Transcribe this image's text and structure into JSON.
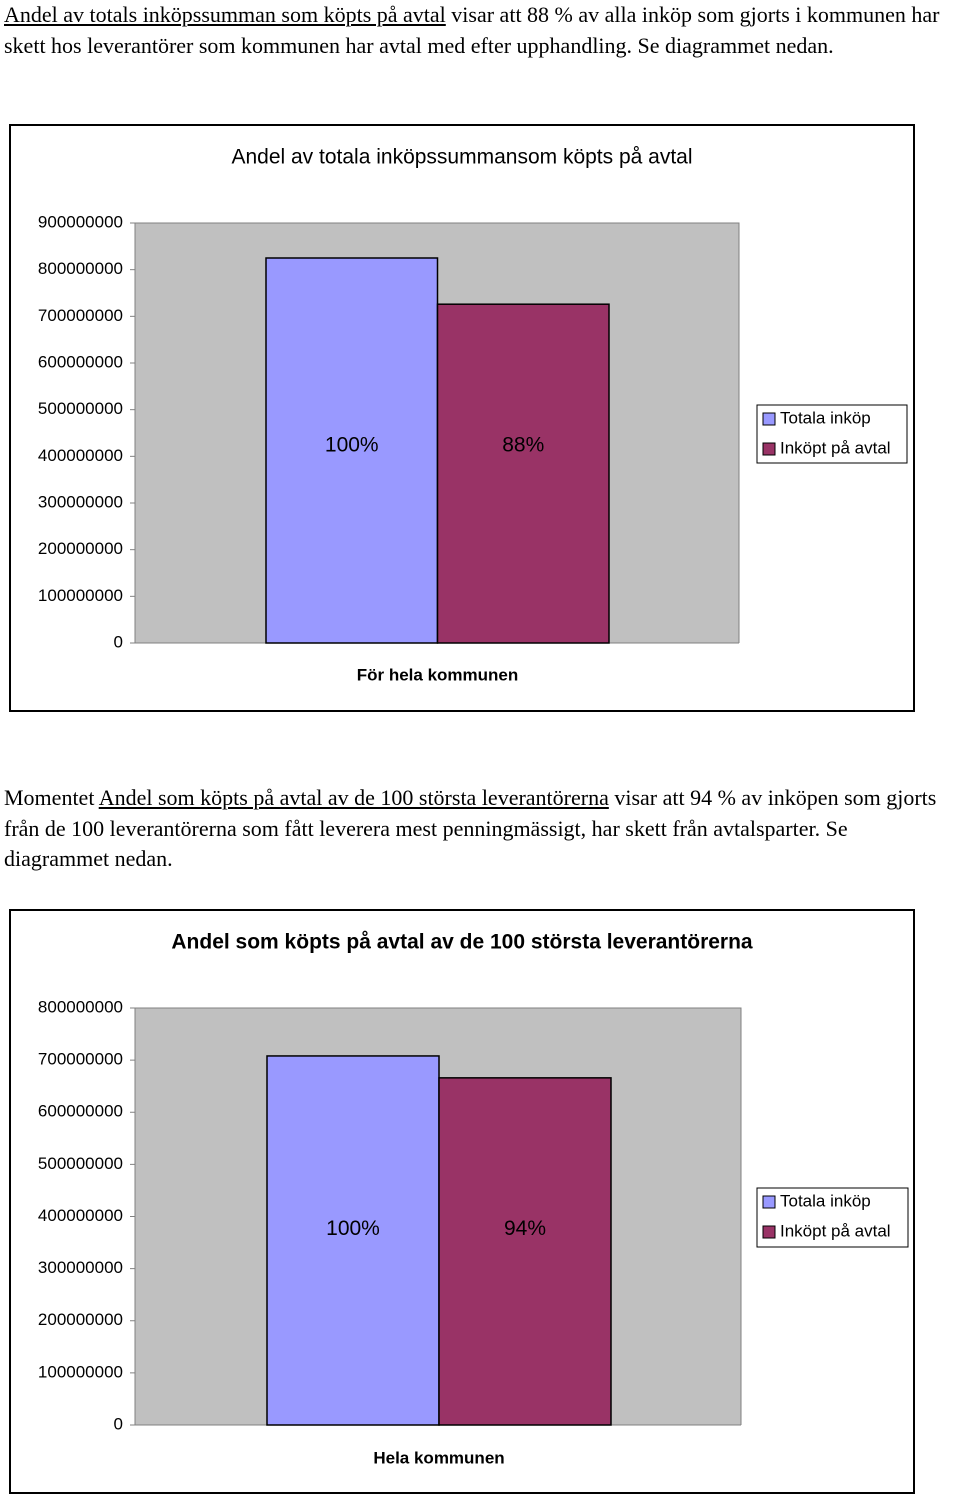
{
  "paragraphs": [
    {
      "parts": [
        "Andel av totals inköpssumman som köpts på avtal",
        " visar att 88 % av alla inköp som gjorts i kommunen har skett hos leverantörer som kommunen har avtal med efter upphandling. Se diagrammet nedan."
      ]
    },
    {
      "parts": [
        "Momentet ",
        "Andel som köpts på avtal av de 100 största leverantörerna",
        " visar att 94 % av inköpen som gjorts från de 100 leverantörerna som fått leverera mest penningmässigt, har skett från avtalsparter. Se diagrammet nedan."
      ]
    }
  ],
  "chart_data": [
    {
      "type": "bar",
      "title": "Andel av totala inköpssummansom köpts på avtal",
      "categories": [
        "För hela kommunen"
      ],
      "series": [
        {
          "name": "Totala inköp",
          "color": "#9999ff",
          "values": [
            825000000
          ]
        },
        {
          "name": "Inköpt på avtal",
          "color": "#993366",
          "values": [
            726000000
          ]
        }
      ],
      "annotations": [
        "100%",
        "88%"
      ],
      "ylim": [
        0,
        900000000
      ],
      "yticks": [
        0,
        100000000,
        200000000,
        300000000,
        400000000,
        500000000,
        600000000,
        700000000,
        800000000,
        900000000
      ],
      "grid": false,
      "legend": "right"
    },
    {
      "type": "bar",
      "title": "Andel som köpts på avtal av de 100 största leverantörerna",
      "categories": [
        "Hela kommunen"
      ],
      "series": [
        {
          "name": "Totala inköp",
          "color": "#9999ff",
          "values": [
            708000000
          ]
        },
        {
          "name": "Inköpt på avtal",
          "color": "#993366",
          "values": [
            666000000
          ]
        }
      ],
      "annotations": [
        "100%",
        "94%"
      ],
      "ylim": [
        0,
        800000000
      ],
      "yticks": [
        0,
        100000000,
        200000000,
        300000000,
        400000000,
        500000000,
        600000000,
        700000000,
        800000000
      ],
      "grid": false,
      "legend": "right"
    }
  ]
}
